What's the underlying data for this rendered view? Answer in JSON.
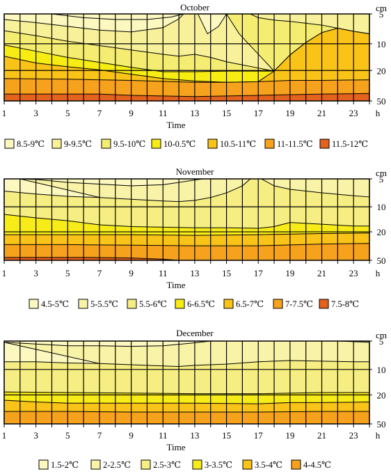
{
  "chart_data": [
    {
      "type": "heatmap",
      "title": "October",
      "xlabel": "Time",
      "x_unit": "h",
      "y_unit": "cm",
      "x_ticks": [
        1,
        3,
        5,
        7,
        9,
        11,
        13,
        15,
        17,
        19,
        21,
        23
      ],
      "xlim": [
        1,
        24
      ],
      "depth_ticks": [
        5,
        10,
        20,
        50
      ],
      "legend": [
        {
          "label": "8.5-9℃",
          "color": "#fcf8c0"
        },
        {
          "label": "9-9.5℃",
          "color": "#f8f19a"
        },
        {
          "label": "9.5-10℃",
          "color": "#f5ed72"
        },
        {
          "label": "10-0.5℃",
          "color": "#f8ed12"
        },
        {
          "label": "10.5-11℃",
          "color": "#f9c318"
        },
        {
          "label": "11-11.5℃",
          "color": "#f7a21d"
        },
        {
          "label": "11.5-12℃",
          "color": "#e3621c"
        }
      ],
      "isotherms": [
        {
          "band": 0,
          "points": [
            [
              1,
              0.0
            ],
            [
              4,
              0.0
            ],
            [
              7,
              0.05
            ],
            [
              9,
              0.08
            ],
            [
              11,
              0.02
            ],
            [
              12,
              0.0
            ]
          ],
          "closed_region": [
            [
              4,
              0
            ],
            [
              12,
              0
            ],
            [
              11,
              0.02
            ],
            [
              9,
              0.08
            ],
            [
              7,
              0.05
            ]
          ]
        },
        {
          "band": 1,
          "points": [
            [
              1,
              0.6
            ],
            [
              3,
              0.8
            ],
            [
              5,
              1.15
            ],
            [
              7,
              1.45
            ],
            [
              9,
              1.6
            ],
            [
              10,
              1.55
            ],
            [
              11,
              1.0
            ],
            [
              12,
              0.4
            ],
            [
              13,
              0.1
            ],
            [
              13.8,
              1.65
            ],
            [
              13.2,
              2.35
            ],
            [
              12,
              2.9
            ],
            [
              10,
              2.95
            ],
            [
              8,
              2.65
            ]
          ]
        },
        {
          "band": 2,
          "points": [
            [
              1,
              1.35
            ],
            [
              3,
              1.75
            ],
            [
              5,
              2.2
            ],
            [
              7,
              2.55
            ],
            [
              9,
              2.9
            ],
            [
              11,
              3.25
            ],
            [
              12,
              3.45
            ],
            [
              13,
              3.3
            ],
            [
              14,
              3.55
            ],
            [
              15,
              3.85
            ],
            [
              16,
              4.1
            ],
            [
              17,
              4.3
            ],
            [
              17.9,
              4.6
            ]
          ]
        },
        {
          "band": 3,
          "points": [
            [
              1,
              2.5
            ],
            [
              3,
              3.0
            ],
            [
              5,
              3.5
            ],
            [
              7,
              3.9
            ],
            [
              9,
              4.3
            ],
            [
              11,
              4.65
            ],
            [
              13,
              4.65
            ],
            [
              15,
              4.6
            ],
            [
              17.9,
              4.6
            ]
          ]
        },
        {
          "band": 4,
          "points": [
            [
              1,
              3.35
            ],
            [
              3,
              3.95
            ],
            [
              5,
              4.25
            ],
            [
              7,
              4.5
            ],
            [
              9,
              4.85
            ],
            [
              11,
              5.2
            ],
            [
              13,
              5.4
            ],
            [
              15,
              5.5
            ],
            [
              17,
              5.45
            ],
            [
              18,
              4.6
            ]
          ]
        }
      ],
      "deep_bands": [
        {
          "color_index": 5,
          "points": [
            [
              1,
              5.2
            ],
            [
              5,
              5.25
            ],
            [
              9,
              5.35
            ],
            [
              13,
              5.5
            ],
            [
              17,
              5.4
            ],
            [
              21,
              5.35
            ],
            [
              24,
              5.3
            ]
          ]
        },
        {
          "color_index": 6,
          "points": [
            [
              1,
              6.25
            ],
            [
              7,
              6.3
            ],
            [
              13,
              6.55
            ],
            [
              17,
              6.45
            ],
            [
              21,
              6.3
            ],
            [
              24,
              6.2
            ]
          ]
        }
      ]
    },
    {
      "type": "heatmap",
      "title": "November",
      "xlabel": "Time",
      "x_unit": "h",
      "y_unit": "cm",
      "x_ticks": [
        1,
        3,
        5,
        7,
        9,
        11,
        13,
        15,
        17,
        19,
        21,
        23
      ],
      "xlim": [
        1,
        24
      ],
      "depth_ticks": [
        5,
        10,
        20,
        50
      ],
      "legend": [
        {
          "label": "4.5-5℃",
          "color": "#fcf8c0"
        },
        {
          "label": "5-5.5℃",
          "color": "#f9f3a8"
        },
        {
          "label": "5.5-6℃",
          "color": "#f6ee82"
        },
        {
          "label": "6-6.5℃",
          "color": "#f8ec18"
        },
        {
          "label": "6.5-7℃",
          "color": "#f9c318"
        },
        {
          "label": "7-7.5℃",
          "color": "#f7a21d"
        },
        {
          "label": "7.5-8℃",
          "color": "#e3621c"
        }
      ]
    },
    {
      "type": "heatmap",
      "title": "December",
      "xlabel": "Time",
      "x_unit": "h",
      "y_unit": "cm",
      "x_ticks": [
        1,
        3,
        5,
        7,
        9,
        11,
        13,
        15,
        17,
        19,
        21,
        23
      ],
      "xlim": [
        1,
        24
      ],
      "depth_ticks": [
        5,
        10,
        20,
        50
      ],
      "legend": [
        {
          "label": "1.5-2℃",
          "color": "#fcf8c0"
        },
        {
          "label": "2-2.5℃",
          "color": "#f9f3a8"
        },
        {
          "label": "2.5-3℃",
          "color": "#f6ee82"
        },
        {
          "label": "3-3.5℃",
          "color": "#f8ec18"
        },
        {
          "label": "3.5-4℃",
          "color": "#f9c318"
        },
        {
          "label": "4-4.5℃",
          "color": "#f7a21d"
        }
      ]
    }
  ]
}
